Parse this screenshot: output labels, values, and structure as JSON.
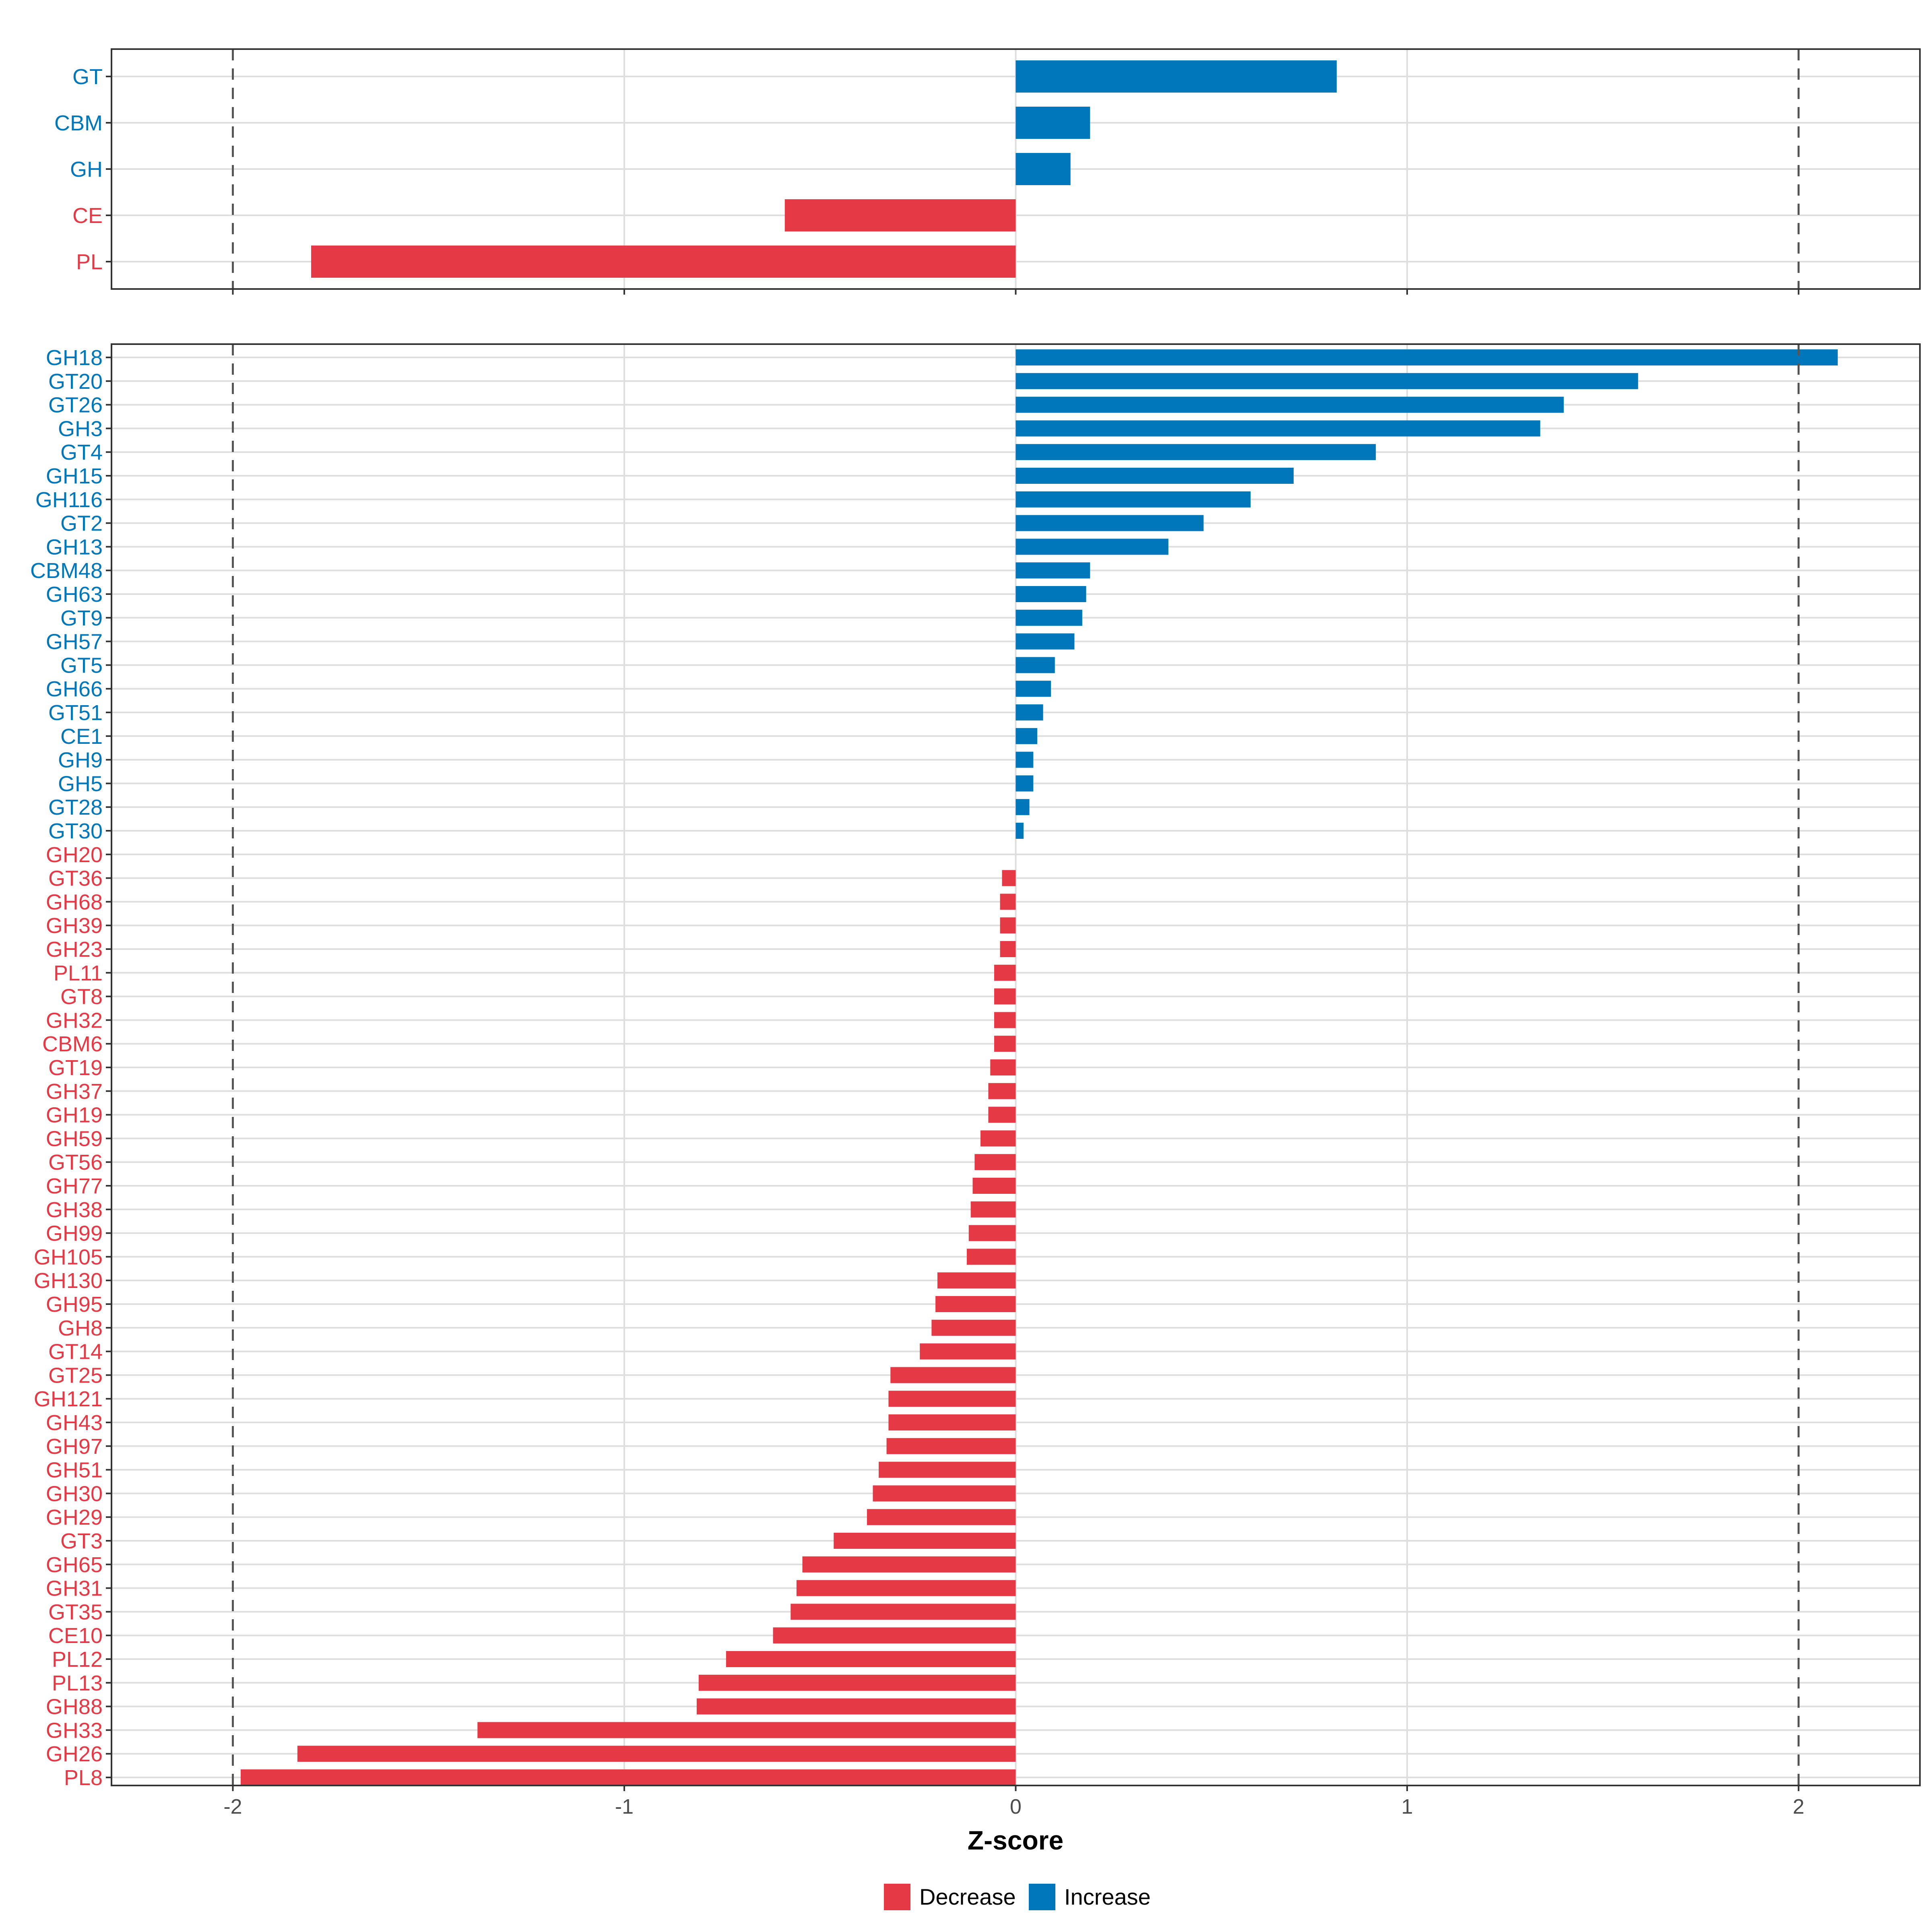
{
  "colors": {
    "increase": "#0077BB",
    "decrease": "#E63946"
  },
  "chart_data": [
    {
      "type": "bar",
      "orientation": "horizontal",
      "panel": "top",
      "categories": [
        "GT",
        "CBM",
        "GH",
        "CE",
        "PL"
      ],
      "values": [
        0.82,
        0.19,
        0.14,
        -0.59,
        -1.8
      ],
      "xlim": [
        -2.31,
        2.31
      ],
      "reference_lines": [
        -2,
        2
      ]
    },
    {
      "type": "bar",
      "orientation": "horizontal",
      "panel": "bottom",
      "categories": [
        "GH18",
        "GT20",
        "GT26",
        "GH3",
        "GT4",
        "GH15",
        "GH116",
        "GT2",
        "GH13",
        "CBM48",
        "GH63",
        "GT9",
        "GH57",
        "GT5",
        "GH66",
        "GT51",
        "CE1",
        "GH9",
        "GH5",
        "GT28",
        "GT30",
        "GH20",
        "GT36",
        "GH68",
        "GH39",
        "GH23",
        "PL11",
        "GT8",
        "GH32",
        "CBM6",
        "GT19",
        "GH37",
        "GH19",
        "GH59",
        "GT56",
        "GH77",
        "GH38",
        "GH99",
        "GH105",
        "GH130",
        "GH95",
        "GH8",
        "GT14",
        "GT25",
        "GH121",
        "GH43",
        "GH97",
        "GH51",
        "GH30",
        "GH29",
        "GT3",
        "GH65",
        "GH31",
        "GT35",
        "CE10",
        "PL12",
        "PL13",
        "GH88",
        "GH33",
        "GH26",
        "PL8"
      ],
      "values": [
        2.1,
        1.59,
        1.4,
        1.34,
        0.92,
        0.71,
        0.6,
        0.48,
        0.39,
        0.19,
        0.18,
        0.17,
        0.15,
        0.1,
        0.09,
        0.07,
        0.055,
        0.045,
        0.045,
        0.035,
        0.02,
        0,
        -0.035,
        -0.04,
        -0.04,
        -0.04,
        -0.055,
        -0.055,
        -0.055,
        -0.055,
        -0.065,
        -0.07,
        -0.07,
        -0.09,
        -0.105,
        -0.11,
        -0.115,
        -0.12,
        -0.125,
        -0.2,
        -0.205,
        -0.215,
        -0.245,
        -0.32,
        -0.325,
        -0.325,
        -0.33,
        -0.35,
        -0.365,
        -0.38,
        -0.465,
        -0.545,
        -0.56,
        -0.575,
        -0.62,
        -0.74,
        -0.81,
        -0.815,
        -1.375,
        -1.835,
        -1.98
      ],
      "xlim": [
        -2.31,
        2.31
      ],
      "reference_lines": [
        -2,
        2
      ]
    }
  ],
  "axis": {
    "xlabel": "Z-score",
    "ticks": [
      {
        "value": -2,
        "label": "-2"
      },
      {
        "value": -1,
        "label": "-1"
      },
      {
        "value": 0,
        "label": "0"
      },
      {
        "value": 1,
        "label": "1"
      },
      {
        "value": 2,
        "label": "2"
      }
    ]
  },
  "legend": {
    "position": "bottom",
    "items": [
      {
        "key": "decrease",
        "label": "Decrease"
      },
      {
        "key": "increase",
        "label": "Increase"
      }
    ]
  }
}
